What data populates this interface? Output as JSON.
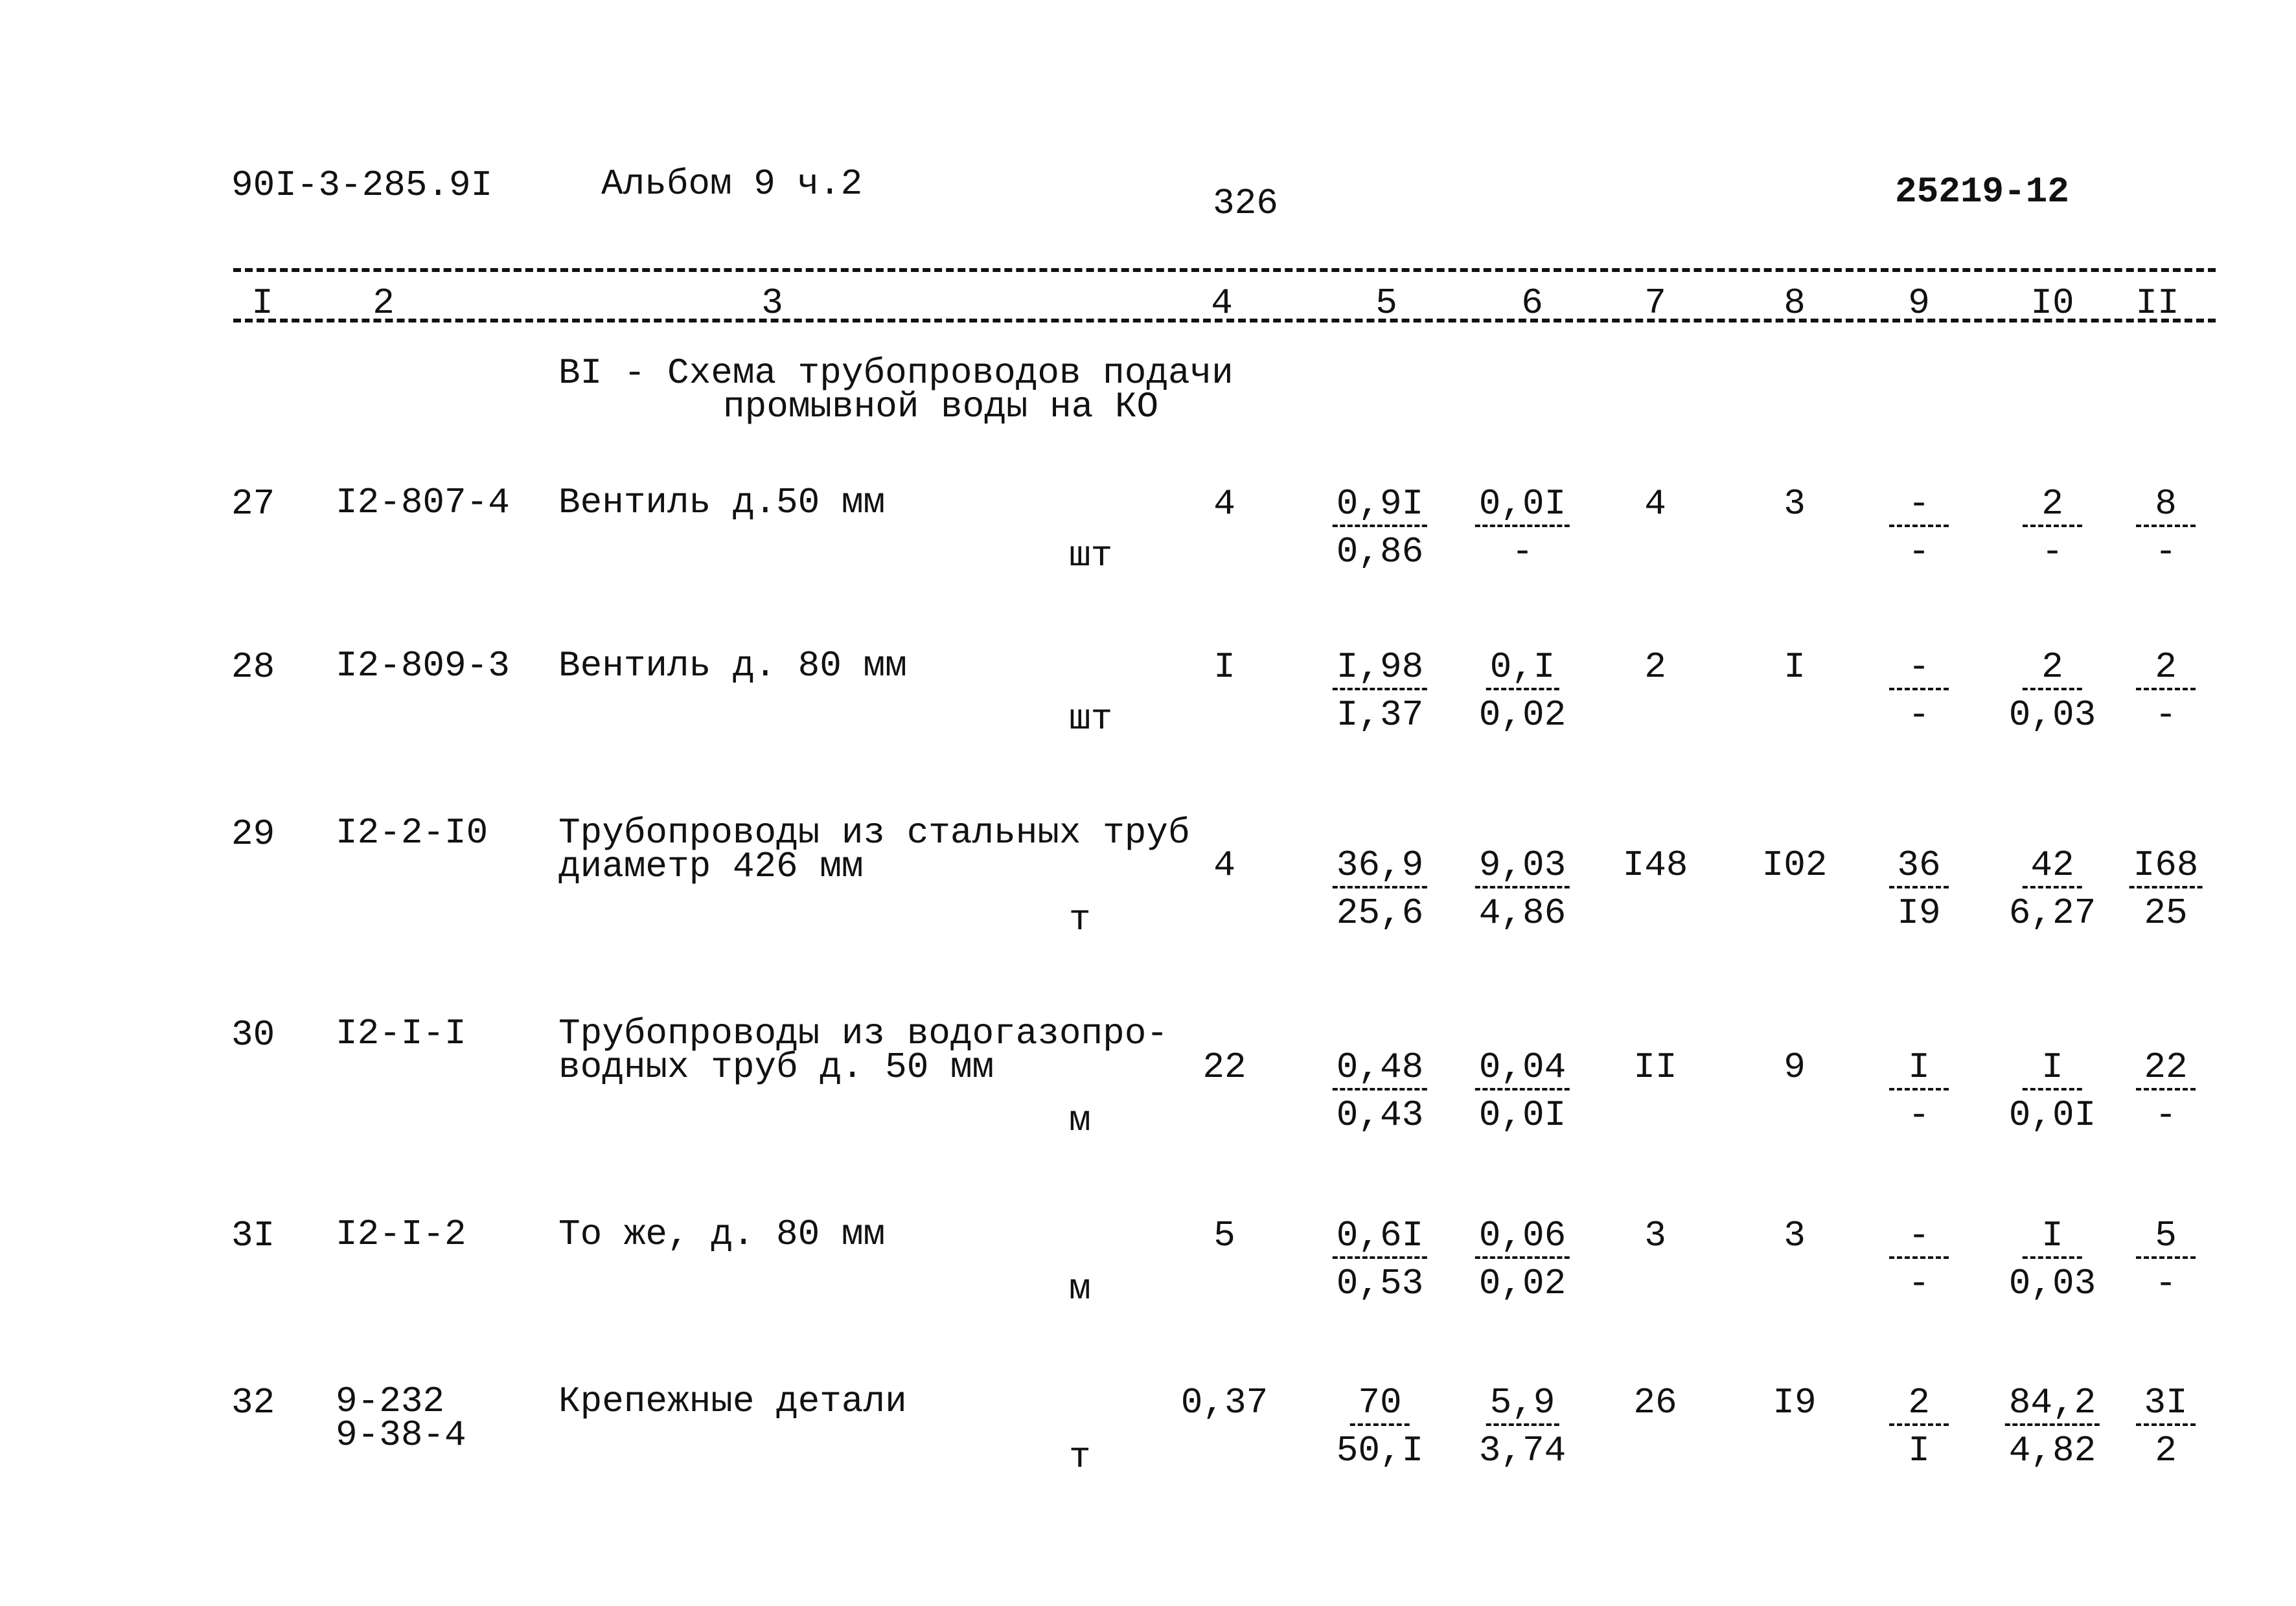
{
  "header": {
    "doc_code": "90I-3-285.9I",
    "album": "Альбом 9 ч.2",
    "page_number": "326",
    "sheet_code": "25219-12"
  },
  "columns": [
    "I",
    "2",
    "3",
    "4",
    "5",
    "6",
    "7",
    "8",
    "9",
    "I0",
    "II"
  ],
  "section_title": [
    "BI - Схема трубопроводов подачи",
    "промывной воды на КО"
  ],
  "rows": [
    {
      "num": "27",
      "code": [
        "I2-807-4"
      ],
      "desc": [
        "Вентиль д.50 мм"
      ],
      "unit": "шт",
      "c4": "4",
      "c5": {
        "t": "0,9I",
        "b": "0,86"
      },
      "c6": {
        "t": "0,0I",
        "b": "-"
      },
      "c7": "4",
      "c8": "3",
      "c9": {
        "t": "-",
        "b": "-"
      },
      "c10": {
        "t": "2",
        "b": "-"
      },
      "c11": {
        "t": "8",
        "b": "-"
      }
    },
    {
      "num": "28",
      "code": [
        "I2-809-3"
      ],
      "desc": [
        "Вентиль д. 80 мм"
      ],
      "unit": "шт",
      "c4": "I",
      "c5": {
        "t": "I,98",
        "b": "I,37"
      },
      "c6": {
        "t": "0,I",
        "b": "0,02"
      },
      "c7": "2",
      "c8": "I",
      "c9": {
        "t": "-",
        "b": "-"
      },
      "c10": {
        "t": "2",
        "b": "0,03"
      },
      "c11": {
        "t": "2",
        "b": "-"
      }
    },
    {
      "num": "29",
      "code": [
        "I2-2-I0"
      ],
      "desc": [
        "Трубопроводы из стальных труб",
        "диаметр 426 мм"
      ],
      "unit": "т",
      "c4": "4",
      "c5": {
        "t": "36,9",
        "b": "25,6"
      },
      "c6": {
        "t": "9,03",
        "b": "4,86"
      },
      "c7": "I48",
      "c8": "I02",
      "c9": {
        "t": "36",
        "b": "I9"
      },
      "c10": {
        "t": "42",
        "b": "6,27"
      },
      "c11": {
        "t": "I68",
        "b": "25"
      }
    },
    {
      "num": "30",
      "code": [
        "I2-I-I"
      ],
      "desc": [
        "Трубопроводы из водогазопро-",
        "водных труб д. 50 мм"
      ],
      "unit": "м",
      "c4": "22",
      "c5": {
        "t": "0,48",
        "b": "0,43"
      },
      "c6": {
        "t": "0,04",
        "b": "0,0I"
      },
      "c7": "II",
      "c8": "9",
      "c9": {
        "t": "I",
        "b": "-"
      },
      "c10": {
        "t": "I",
        "b": "0,0I"
      },
      "c11": {
        "t": "22",
        "b": "-"
      }
    },
    {
      "num": "3I",
      "code": [
        "I2-I-2"
      ],
      "desc": [
        "То же, д. 80 мм"
      ],
      "unit": "м",
      "c4": "5",
      "c5": {
        "t": "0,6I",
        "b": "0,53"
      },
      "c6": {
        "t": "0,06",
        "b": "0,02"
      },
      "c7": "3",
      "c8": "3",
      "c9": {
        "t": "-",
        "b": "-"
      },
      "c10": {
        "t": "I",
        "b": "0,03"
      },
      "c11": {
        "t": "5",
        "b": "-"
      }
    },
    {
      "num": "32",
      "code": [
        "9-232",
        "9-38-4"
      ],
      "desc": [
        "Крепежные детали"
      ],
      "unit": "т",
      "c4": "0,37",
      "c5": {
        "t": "70",
        "b": "50,I"
      },
      "c6": {
        "t": "5,9",
        "b": "3,74"
      },
      "c7": "26",
      "c8": "I9",
      "c9": {
        "t": "2",
        "b": "I"
      },
      "c10": {
        "t": "84,2",
        "b": "4,82"
      },
      "c11": {
        "t": "3I",
        "b": "2"
      }
    }
  ]
}
